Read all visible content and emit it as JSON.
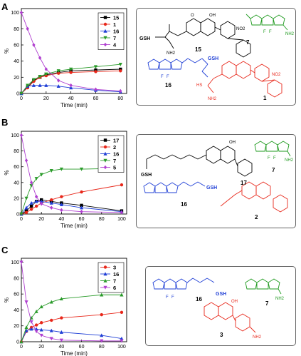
{
  "panels": [
    {
      "letter": "A"
    },
    {
      "letter": "B"
    },
    {
      "letter": "C"
    }
  ],
  "chart_data": [
    {
      "type": "line",
      "panel": "A",
      "xlabel": "Time (min)",
      "ylabel": "%",
      "xlim": [
        0,
        85
      ],
      "ylim": [
        0,
        105
      ],
      "xticks": [
        0,
        20,
        40,
        60,
        80
      ],
      "yticks": [
        0,
        20,
        40,
        60,
        80,
        100
      ],
      "legend_position": "top-right",
      "series": [
        {
          "name": "15",
          "color": "#000000",
          "marker": "square",
          "x": [
            0,
            5,
            10,
            15,
            20,
            30,
            40,
            60,
            80
          ],
          "y": [
            0,
            8,
            16,
            20,
            23,
            26,
            28,
            29,
            30
          ]
        },
        {
          "name": "1",
          "color": "#e8271a",
          "marker": "circle",
          "x": [
            0,
            5,
            10,
            15,
            20,
            30,
            40,
            60,
            80
          ],
          "y": [
            0,
            7,
            15,
            20,
            22,
            25,
            26,
            27,
            28
          ]
        },
        {
          "name": "16",
          "color": "#1f3fd6",
          "marker": "triangle-up",
          "x": [
            0,
            5,
            10,
            15,
            20,
            30,
            40,
            60,
            80
          ],
          "y": [
            0,
            9,
            10,
            10,
            10,
            9,
            7,
            4,
            2
          ]
        },
        {
          "name": "7",
          "color": "#2a9b2a",
          "marker": "triangle-down",
          "x": [
            0,
            5,
            10,
            15,
            20,
            30,
            40,
            60,
            80
          ],
          "y": [
            0,
            10,
            17,
            21,
            24,
            28,
            30,
            33,
            36
          ]
        },
        {
          "name": "4",
          "color": "#b040d0",
          "marker": "diamond",
          "x": [
            0,
            5,
            10,
            15,
            20,
            30,
            40,
            60,
            80
          ],
          "y": [
            100,
            80,
            60,
            44,
            30,
            16,
            10,
            5,
            3
          ]
        }
      ]
    },
    {
      "type": "line",
      "panel": "B",
      "xlabel": "Time (min)",
      "ylabel": "%",
      "xlim": [
        0,
        105
      ],
      "ylim": [
        0,
        105
      ],
      "xticks": [
        0,
        20,
        40,
        60,
        80,
        100
      ],
      "yticks": [
        0,
        20,
        40,
        60,
        80,
        100
      ],
      "legend_position": "top-right",
      "series": [
        {
          "name": "17",
          "color": "#000000",
          "marker": "square",
          "x": [
            0,
            5,
            10,
            15,
            20,
            30,
            40,
            60,
            100
          ],
          "y": [
            0,
            4,
            10,
            16,
            18,
            16,
            14,
            11,
            4
          ]
        },
        {
          "name": "2",
          "color": "#e8271a",
          "marker": "circle",
          "x": [
            0,
            5,
            10,
            15,
            20,
            30,
            40,
            60,
            100
          ],
          "y": [
            0,
            2,
            6,
            10,
            14,
            18,
            22,
            28,
            37
          ]
        },
        {
          "name": "16",
          "color": "#1f3fd6",
          "marker": "triangle-up",
          "x": [
            0,
            5,
            10,
            15,
            20,
            30,
            40,
            60,
            100
          ],
          "y": [
            0,
            8,
            14,
            16,
            16,
            14,
            12,
            8,
            3
          ]
        },
        {
          "name": "7",
          "color": "#2a9b2a",
          "marker": "triangle-down",
          "x": [
            0,
            5,
            10,
            15,
            20,
            30,
            40,
            60,
            100
          ],
          "y": [
            0,
            20,
            36,
            45,
            50,
            55,
            57,
            57,
            58
          ]
        },
        {
          "name": "5",
          "color": "#b040d0",
          "marker": "diamond",
          "x": [
            0,
            5,
            10,
            15,
            20,
            30,
            40,
            60,
            100
          ],
          "y": [
            100,
            68,
            40,
            22,
            13,
            8,
            5,
            3,
            2
          ]
        }
      ]
    },
    {
      "type": "line",
      "panel": "C",
      "xlabel": "Time (min)",
      "ylabel": "%",
      "xlim": [
        0,
        105
      ],
      "ylim": [
        0,
        105
      ],
      "xticks": [
        0,
        20,
        40,
        60,
        80,
        100
      ],
      "yticks": [
        0,
        20,
        40,
        60,
        80,
        100
      ],
      "legend_position": "top-right",
      "series": [
        {
          "name": "3",
          "color": "#e8271a",
          "marker": "circle",
          "x": [
            0,
            5,
            10,
            15,
            20,
            30,
            40,
            80,
            100
          ],
          "y": [
            0,
            13,
            18,
            21,
            24,
            27,
            30,
            34,
            37
          ]
        },
        {
          "name": "16",
          "color": "#1f3fd6",
          "marker": "triangle-up",
          "x": [
            0,
            5,
            10,
            15,
            20,
            30,
            40,
            80,
            100
          ],
          "y": [
            0,
            14,
            16,
            16,
            15,
            14,
            12,
            8,
            4
          ]
        },
        {
          "name": "7",
          "color": "#2a9b2a",
          "marker": "triangle-up",
          "x": [
            0,
            5,
            10,
            15,
            20,
            30,
            40,
            80,
            100
          ],
          "y": [
            0,
            18,
            30,
            38,
            44,
            50,
            54,
            59,
            59
          ]
        },
        {
          "name": "6",
          "color": "#b040d0",
          "marker": "triangle-down",
          "x": [
            0,
            5,
            10,
            15,
            20,
            30,
            40,
            80,
            100
          ],
          "y": [
            100,
            50,
            25,
            13,
            8,
            4,
            2,
            1,
            1
          ]
        }
      ]
    }
  ],
  "schemes": [
    {
      "panel": "A",
      "molecules": [
        {
          "id": "15",
          "color": "#000000"
        },
        {
          "id": "7",
          "color": "#000000"
        },
        {
          "id": "16",
          "color": "#000000"
        },
        {
          "id": "1",
          "color": "#000000"
        }
      ],
      "atom_labels": [
        "GSH",
        "GSH",
        "OH",
        "O",
        "NO2",
        "NH2",
        "NH2",
        "HS",
        "F",
        "F"
      ]
    },
    {
      "panel": "B",
      "molecules": [
        {
          "id": "17",
          "color": "#000000"
        },
        {
          "id": "7",
          "color": "#000000"
        },
        {
          "id": "16",
          "color": "#000000"
        },
        {
          "id": "2",
          "color": "#000000"
        }
      ],
      "atom_labels": [
        "GSH",
        "GSH",
        "OH",
        "NH2",
        "F",
        "F"
      ]
    },
    {
      "panel": "C",
      "molecules": [
        {
          "id": "16",
          "color": "#000000"
        },
        {
          "id": "7",
          "color": "#000000"
        },
        {
          "id": "3",
          "color": "#000000"
        }
      ],
      "atom_labels": [
        "GSH",
        "OH",
        "NH2",
        "NH2",
        "F",
        "F"
      ]
    }
  ]
}
